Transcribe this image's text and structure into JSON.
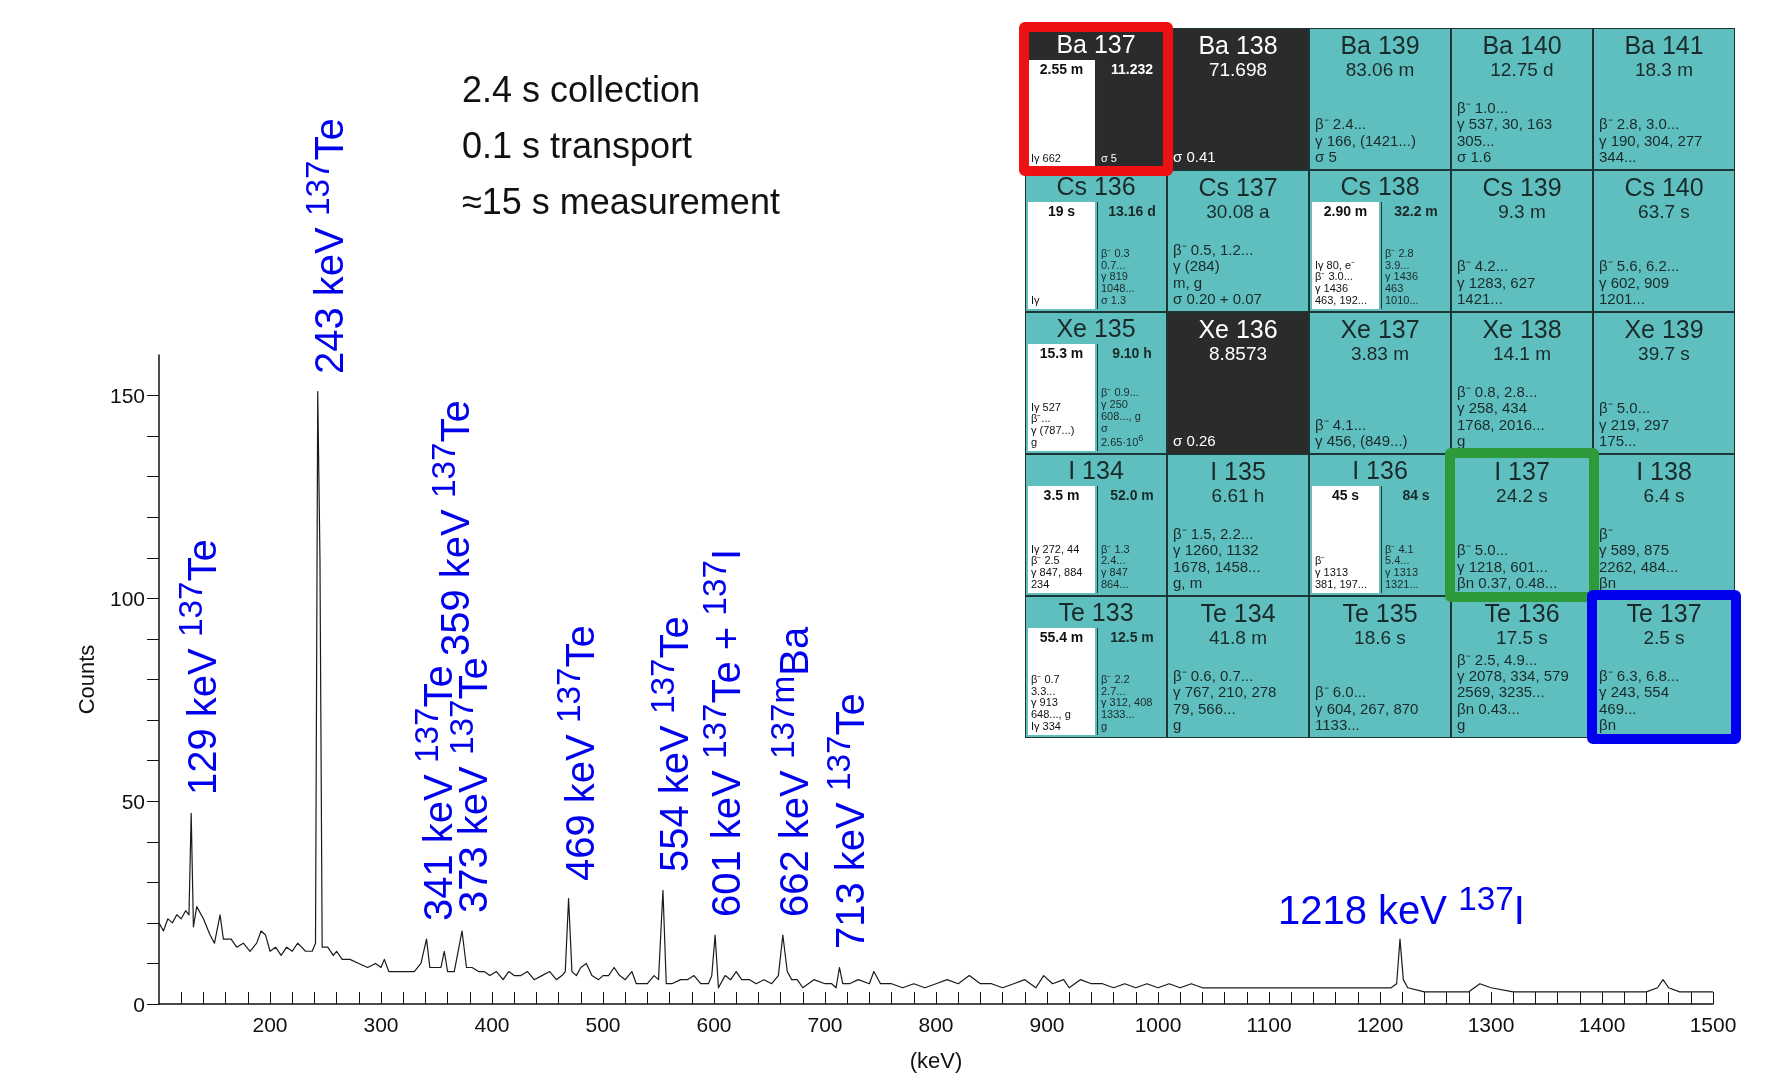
{
  "chart_data": [
    {
      "type": "line",
      "xlabel": "(keV)",
      "ylabel": "Counts",
      "color": "#1a1a1a",
      "marker": "none",
      "grid": false,
      "x": [
        100,
        104,
        108,
        112,
        116,
        120,
        124,
        127,
        129,
        131,
        134,
        140,
        146,
        150,
        155,
        158,
        165,
        170,
        176,
        182,
        188,
        192,
        196,
        200,
        205,
        210,
        215,
        220,
        225,
        232,
        238,
        241,
        243,
        245,
        247,
        252,
        257,
        260,
        265,
        272,
        280,
        288,
        295,
        300,
        303,
        307,
        315,
        322,
        330,
        336,
        341,
        344,
        350,
        354,
        357,
        360,
        366,
        373,
        377,
        382,
        388,
        393,
        398,
        404,
        410,
        415,
        420,
        426,
        432,
        438,
        445,
        452,
        458,
        463,
        466,
        469,
        472,
        476,
        480,
        485,
        490,
        496,
        500,
        505,
        510,
        515,
        520,
        526,
        530,
        540,
        546,
        550,
        554,
        557,
        562,
        570,
        576,
        582,
        588,
        595,
        598,
        601,
        604,
        610,
        615,
        620,
        625,
        632,
        638,
        645,
        652,
        658,
        662,
        666,
        670,
        675,
        680,
        690,
        700,
        706,
        710,
        713,
        716,
        722,
        730,
        740,
        744,
        750,
        760,
        770,
        780,
        790,
        800,
        810,
        820,
        830,
        840,
        850,
        860,
        870,
        880,
        890,
        897,
        905,
        915,
        920,
        930,
        940,
        950,
        960,
        970,
        980,
        990,
        1000,
        1010,
        1020,
        1030,
        1040,
        1060,
        1080,
        1100,
        1120,
        1140,
        1160,
        1180,
        1200,
        1210,
        1215,
        1218,
        1221,
        1225,
        1240,
        1260,
        1280,
        1290,
        1300,
        1320,
        1340,
        1360,
        1380,
        1400,
        1420,
        1440,
        1450,
        1455,
        1460,
        1470,
        1480,
        1490,
        1500
      ],
      "values": [
        20,
        18,
        21,
        20,
        22,
        21,
        23,
        22,
        47,
        19,
        24,
        21,
        17,
        15,
        22,
        16,
        16,
        14,
        15,
        13,
        15,
        18,
        17,
        13,
        14,
        12,
        14,
        13,
        15,
        13,
        13,
        15,
        151,
        110,
        14,
        14,
        12,
        13,
        11,
        11,
        10,
        9,
        10,
        9,
        11,
        8,
        8,
        8,
        8,
        10,
        16,
        9,
        9,
        9,
        13,
        8,
        8,
        18,
        9,
        9,
        8,
        8,
        7,
        8,
        6,
        8,
        7,
        7,
        8,
        6,
        7,
        8,
        6,
        7,
        8,
        26,
        8,
        7,
        9,
        10,
        7,
        6,
        7,
        7,
        9,
        7,
        6,
        8,
        5,
        5,
        7,
        6,
        28,
        5,
        5,
        6,
        6,
        7,
        5,
        5,
        7,
        17,
        4,
        7,
        6,
        8,
        6,
        6,
        5,
        6,
        5,
        7,
        17,
        8,
        6,
        6,
        4,
        6,
        5,
        5,
        4,
        9,
        5,
        5,
        6,
        5,
        8,
        5,
        5,
        4,
        5,
        4,
        5,
        6,
        5,
        7,
        5,
        5,
        4,
        5,
        6,
        4,
        7,
        5,
        6,
        4,
        6,
        5,
        5,
        4,
        5,
        4,
        5,
        4,
        5,
        4,
        5,
        4,
        4,
        4,
        4,
        4,
        4,
        4,
        4,
        4,
        4,
        5,
        16,
        6,
        4,
        3,
        3,
        3,
        5,
        4,
        3,
        3,
        3,
        3,
        3,
        3,
        3,
        4,
        6,
        4,
        3,
        3,
        3,
        3
      ],
      "xlim": [
        100,
        1500
      ],
      "xticks": [
        {
          "value": 120,
          "label": null
        },
        {
          "value": 140,
          "label": null
        },
        {
          "value": 160,
          "label": null
        },
        {
          "value": 180,
          "label": null
        },
        200,
        {
          "value": 220,
          "label": null
        },
        {
          "value": 240,
          "label": null
        },
        {
          "value": 260,
          "label": null
        },
        {
          "value": 280,
          "label": null
        },
        300,
        {
          "value": 320,
          "label": null
        },
        {
          "value": 340,
          "label": null
        },
        {
          "value": 360,
          "label": null
        },
        {
          "value": 380,
          "label": null
        },
        400,
        {
          "value": 420,
          "label": null
        },
        {
          "value": 440,
          "label": null
        },
        {
          "value": 460,
          "label": null
        },
        {
          "value": 480,
          "label": null
        },
        500,
        {
          "value": 520,
          "label": null
        },
        {
          "value": 540,
          "label": null
        },
        {
          "value": 560,
          "label": null
        },
        {
          "value": 580,
          "label": null
        },
        600,
        {
          "value": 620,
          "label": null
        },
        {
          "value": 640,
          "label": null
        },
        {
          "value": 660,
          "label": null
        },
        {
          "value": 680,
          "label": null
        },
        700,
        {
          "value": 720,
          "label": null
        },
        {
          "value": 740,
          "label": null
        },
        {
          "value": 760,
          "label": null
        },
        {
          "value": 780,
          "label": null
        },
        800,
        {
          "value": 820,
          "label": null
        },
        {
          "value": 840,
          "label": null
        },
        {
          "value": 860,
          "label": null
        },
        {
          "value": 880,
          "label": null
        },
        900,
        {
          "value": 920,
          "label": null
        },
        {
          "value": 940,
          "label": null
        },
        {
          "value": 960,
          "label": null
        },
        {
          "value": 980,
          "label": null
        },
        1000,
        {
          "value": 1020,
          "label": null
        },
        {
          "value": 1040,
          "label": null
        },
        {
          "value": 1060,
          "label": null
        },
        {
          "value": 1080,
          "label": null
        },
        1100,
        {
          "value": 1120,
          "label": null
        },
        {
          "value": 1140,
          "label": null
        },
        {
          "value": 1160,
          "label": null
        },
        {
          "value": 1180,
          "label": null
        },
        1200,
        {
          "value": 1220,
          "label": null
        },
        {
          "value": 1240,
          "label": null
        },
        {
          "value": 1260,
          "label": null
        },
        {
          "value": 1280,
          "label": null
        },
        1300,
        {
          "value": 1320,
          "label": null
        },
        {
          "value": 1340,
          "label": null
        },
        {
          "value": 1360,
          "label": null
        },
        {
          "value": 1380,
          "label": null
        },
        1400,
        {
          "value": 1420,
          "label": null
        },
        {
          "value": 1440,
          "label": null
        },
        {
          "value": 1460,
          "label": null
        },
        {
          "value": 1480,
          "label": null
        },
        1500
      ],
      "ylim": [
        0,
        160
      ],
      "yticks": [
        0,
        {
          "value": 10,
          "label": null
        },
        {
          "value": 20,
          "label": null
        },
        {
          "value": 30,
          "label": null
        },
        {
          "value": 40,
          "label": null
        },
        50,
        {
          "value": 60,
          "label": null
        },
        {
          "value": 70,
          "label": null
        },
        {
          "value": 80,
          "label": null
        },
        {
          "value": 90,
          "label": null
        },
        100,
        {
          "value": 110,
          "label": null
        },
        {
          "value": 120,
          "label": null
        },
        {
          "value": 130,
          "label": null
        },
        {
          "value": 140,
          "label": null
        },
        150
      ],
      "annotations": [
        "2.4 s collection",
        "0.1 s transport",
        "≈15 s measurement",
        {
          "text": "129 keV $^{137}$Te",
          "x": 129,
          "y": 47
        },
        {
          "text": "243 keV $^{137}$Te",
          "x": 243,
          "y": 151
        },
        {
          "text": "341 keV $^{137}$Te",
          "x": 341,
          "y": 16
        },
        "359 keV $^{137}$Te",
        {
          "text": "373 keV $^{137}$Te",
          "x": 373,
          "y": 18
        },
        {
          "text": "469 keV $^{137}$Te",
          "x": 469,
          "y": 26
        },
        {
          "text": "554 keV $^{137}$Te",
          "x": 554,
          "y": 28
        },
        {
          "text": "601 keV $^{137}$Te + $^{137}$I",
          "x": 601,
          "y": 17
        },
        {
          "text": "662 keV $^{137m}$Ba",
          "x": 662,
          "y": 17
        },
        {
          "text": "713 keV $^{137}$Te",
          "x": 713,
          "y": 9
        },
        {
          "text": "1218 keV $^{137}$I",
          "x": 1218,
          "y": 16
        }
      ]
    },
    {
      "type": "other",
      "annotations": [
        "Ba 137\n\n2.55 m\n\nIγ 662\n\n11.232\n\nσ 5",
        "Ba 138\n\n71.698\n\nσ 0.41",
        "Ba 139\n\n83.06 m\n\nβ⁻ 2.4...\nγ 166, (1421...)\nσ 5",
        "Ba 140\n\n12.75 d\n\nβ⁻ 1.0...\nγ 537, 30, 163\n305...\nσ 1.6",
        "Ba 141\n\n18.3 m\n\nβ⁻ 2.8, 3.0...\nγ 190, 304, 277\n344...",
        "Cs 136\n\n19 s\n\nIγ\n\n13.16 d\n\nβ⁻ 0.3\n0.7...\nγ 819\n1048...\nσ 1.3",
        "Cs 137\n\n30.08 a\n\nβ⁻ 0.5, 1.2...\nγ (284)\nm, g\nσ 0.20 + 0.07",
        "Cs 138\n\n2.90 m\n\nIγ 80, e⁻\nβ⁻ 3.0...\nγ 1436\n463, 192...\n\n32.2 m\n\nβ⁻ 2.8\n3.9...\nγ 1436\n463\n1010...",
        "Cs 139\n\n9.3 m\n\nβ⁻ 4.2...\nγ 1283, 627\n1421...",
        "Cs 140\n\n63.7 s\n\nβ⁻ 5.6, 6.2...\nγ 602, 909\n1201...",
        "Xe 135\n\n15.3 m\n\nIγ 527\nβ⁻...\nγ (787...)\ng\n\n9.10 h\n\nβ⁻ 0.9...\nγ 250\n608..., g\nσ\n2.65·10$^{6}$",
        "Xe 136\n\n8.8573\n\nσ 0.26",
        "Xe 137\n\n3.83 m\n\nβ⁻ 4.1...\nγ 456, (849...)",
        "Xe 138\n\n14.1 m\n\nβ⁻ 0.8, 2.8...\nγ 258, 434\n1768, 2016...\ng",
        "Xe 139\n\n39.7 s\n\nβ⁻ 5.0...\nγ 219, 297\n175...",
        "I 134\n\n3.5 m\n\nIγ 272, 44\nβ⁻ 2.5\nγ 847, 884\n234\n\n52.0 m\n\nβ⁻ 1.3\n2.4...\nγ 847\n864...",
        "I 135\n\n6.61 h\n\nβ⁻ 1.5, 2.2...\nγ 1260, 1132\n1678, 1458...\ng, m",
        "I 136\n\n45 s\n\nβ⁻\nγ 1313\n381, 197...\n\n84 s\n\nβ⁻ 4.1\n5.4...\nγ 1313\n1321...",
        "I 137\n\n24.2 s\n\nβ⁻ 5.0...\nγ 1218, 601...\nβn 0.37, 0.48...",
        "I 138\n\n6.4 s\n\nβ⁻\nγ 589, 875\n2262, 484...\nβn",
        "Te 133\n\n55.4 m\n\nβ⁻ 0.7\n3.3...\nγ 913\n648..., g\nIγ 334\n\n12.5 m\n\nβ⁻ 2.2\n2.7...\nγ 312, 408\n1333...\ng",
        "Te 134\n\n41.8 m\n\nβ⁻ 0.6, 0.7...\nγ 767, 210, 278\n79, 566...\ng",
        "Te 135\n\n18.6 s\n\nβ⁻ 6.0...\nγ 604, 267, 870\n1133...",
        "Te 136\n\n17.5 s\n\nβ⁻ 2.5, 4.9...\nγ 2078, 334, 579\n2569, 3235...\nβn 0.43...\ng",
        "Te 137\n\n2.5 s\n\nβ⁻ 6.3, 6.8...\nγ 243, 554\n469...\nβn"
      ],
      "colors": [
        "#2b2b2b",
        "#2b2b2b",
        "#5fbfbf",
        "#5fbfbf",
        "#5fbfbf",
        "#5fbfbf",
        "#5fbfbf",
        "#5fbfbf",
        "#5fbfbf",
        "#5fbfbf",
        "#5fbfbf",
        "#2b2b2b",
        "#5fbfbf",
        "#5fbfbf",
        "#5fbfbf",
        "#5fbfbf",
        "#5fbfbf",
        "#5fbfbf",
        "#5fbfbf",
        "#5fbfbf",
        "#5fbfbf",
        "#5fbfbf",
        "#5fbfbf",
        "#5fbfbf",
        "#5fbfbf"
      ]
    }
  ]
}
